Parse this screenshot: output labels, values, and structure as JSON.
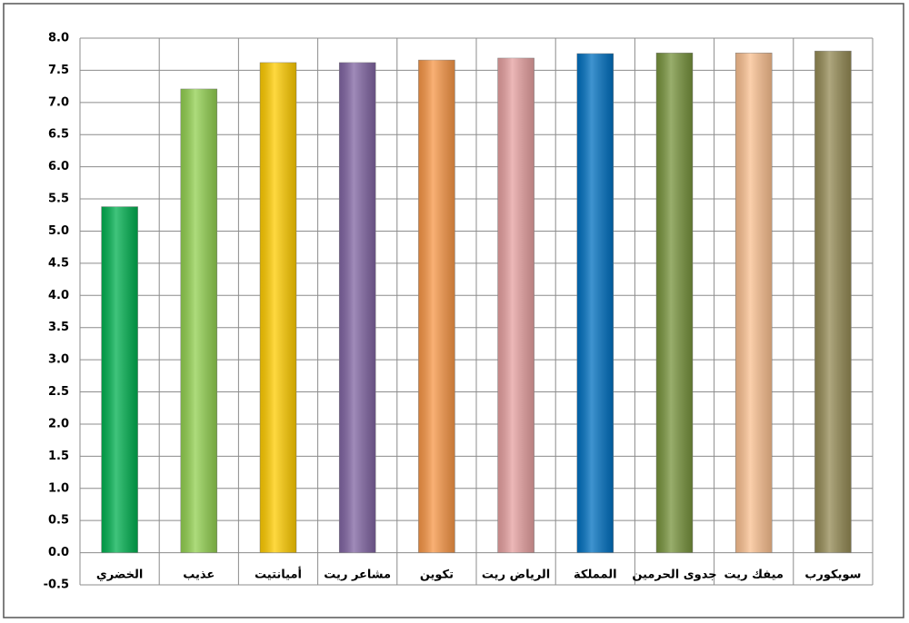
{
  "chart_data": {
    "type": "bar",
    "categories": [
      "الخضري",
      "عذيب",
      "أميانتيت",
      "مشاعر ريت",
      "تكوين",
      "الرياض ريت",
      "المملكة",
      "جدوى الحرمين",
      "ميفك ريت",
      "سويكورب"
    ],
    "values": [
      5.38,
      7.21,
      7.62,
      7.62,
      7.66,
      7.69,
      7.76,
      7.77,
      7.77,
      7.8
    ],
    "colors": [
      "#00b050",
      "#92d050",
      "#ffcc00",
      "#8064a2",
      "#f79646",
      "#e6a0a0",
      "#0070c0",
      "#77933c",
      "#fac090",
      "#948a54"
    ],
    "ylim": [
      -0.5,
      8
    ],
    "yticks": [
      -0.5,
      {
        "value": 0,
        "label": "0.0"
      },
      0.5,
      {
        "value": 1,
        "label": "1.0"
      },
      1.5,
      {
        "value": 2,
        "label": "2.0"
      },
      2.5,
      {
        "value": 3,
        "label": "3.0"
      },
      3.5,
      {
        "value": 4,
        "label": "4.0"
      },
      4.5,
      {
        "value": 5,
        "label": "5.0"
      },
      5.5,
      {
        "value": 6,
        "label": "6.0"
      },
      6.5,
      {
        "value": 7,
        "label": "7.0"
      },
      7.5,
      {
        "value": 8,
        "label": "8.0"
      }
    ],
    "grid": true
  }
}
